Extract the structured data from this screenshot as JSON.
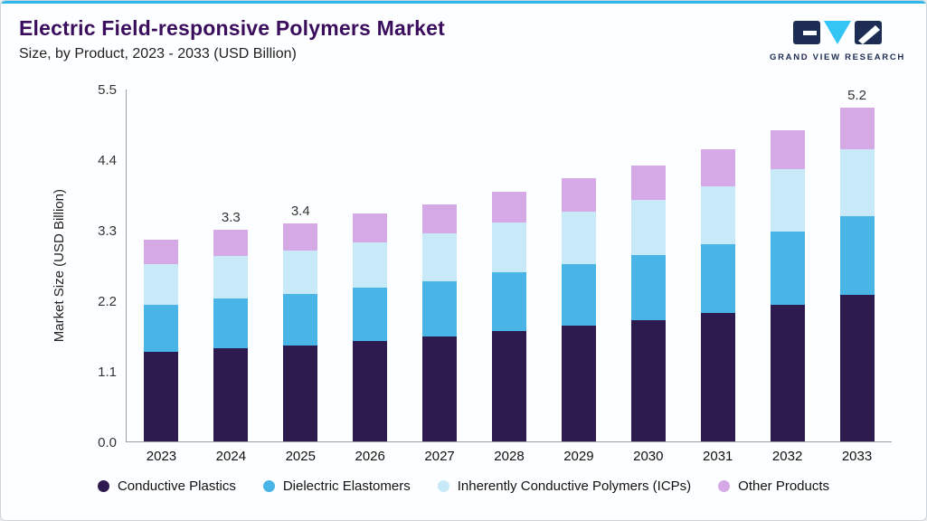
{
  "header": {
    "title": "Electric Field-responsive Polymers Market",
    "subtitle": "Size, by Product, 2023 - 2033 (USD Billion)",
    "logo_text": "GRAND VIEW RESEARCH"
  },
  "colors": {
    "accent": "#2fb8e9",
    "title_color": "#3a0d5d",
    "card_bg": "#fdfeff",
    "card_border": "#ccd5dc",
    "axis": "#97a0a7",
    "logo_navy": "#1d2c52",
    "logo_cyan": "#33c5f3"
  },
  "chart_data": {
    "type": "bar",
    "stacked": true,
    "title": "Electric Field-responsive Polymers Market Size, by Product, 2023 - 2033 (USD Billion)",
    "xlabel": "",
    "ylabel": "Market Size (USD Billion)",
    "ylim": [
      0,
      5.5
    ],
    "yticks": [
      "0.0",
      "1.1",
      "2.2",
      "3.3",
      "4.4",
      "5.5"
    ],
    "grid": false,
    "legend_position": "bottom",
    "categories": [
      "2023",
      "2024",
      "2025",
      "2026",
      "2027",
      "2028",
      "2029",
      "2030",
      "2031",
      "2032",
      "2033"
    ],
    "series": [
      {
        "name": "Conductive Plastics",
        "color": "#2d1a4e",
        "values": [
          1.39,
          1.45,
          1.5,
          1.56,
          1.63,
          1.72,
          1.8,
          1.89,
          2.0,
          2.13,
          2.29
        ]
      },
      {
        "name": "Dielectric Elastomers",
        "color": "#49b5e7",
        "values": [
          0.74,
          0.78,
          0.8,
          0.84,
          0.87,
          0.92,
          0.97,
          1.01,
          1.07,
          1.14,
          1.22
        ]
      },
      {
        "name": "Inherently Conductive Polymers (ICPs)",
        "color": "#c8e9f8",
        "values": [
          0.63,
          0.66,
          0.68,
          0.71,
          0.74,
          0.78,
          0.82,
          0.86,
          0.91,
          0.97,
          1.04
        ]
      },
      {
        "name": "Other Products",
        "color": "#d5a8e6",
        "values": [
          0.39,
          0.41,
          0.42,
          0.44,
          0.46,
          0.48,
          0.51,
          0.54,
          0.57,
          0.61,
          0.65
        ]
      }
    ],
    "totals": [
      3.15,
      3.3,
      3.4,
      3.55,
      3.7,
      3.9,
      4.1,
      4.3,
      4.55,
      4.85,
      5.2
    ],
    "bar_labels": {
      "2024": "3.3",
      "2025": "3.4",
      "2033": "5.2"
    }
  }
}
